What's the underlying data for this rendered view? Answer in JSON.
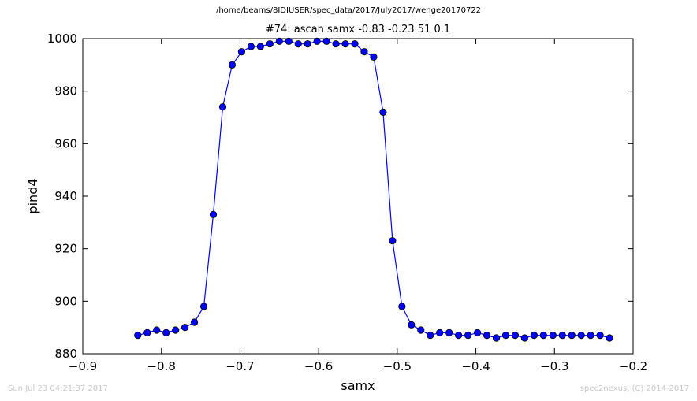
{
  "header": {
    "file_path": "/home/beams/8IDIUSER/spec_data/2017/July2017/wenge20170722",
    "title": "#74: ascan  samx -0.83 -0.23  51 0.1"
  },
  "footer": {
    "timestamp": "Sun Jul 23 04:21:37 2017",
    "credit": "spec2nexus, (C) 2014-2017"
  },
  "colors": {
    "series": "#0000ff",
    "marker_fill": "#0000ff",
    "footer_text": "#c8c8c8"
  },
  "chart_data": {
    "type": "line",
    "xlabel": "samx",
    "ylabel": "pind4",
    "xlim": [
      -0.9,
      -0.2
    ],
    "ylim": [
      880,
      1000
    ],
    "xticks": [
      -0.9,
      -0.8,
      -0.7,
      -0.6,
      -0.5,
      -0.4,
      -0.3,
      -0.2
    ],
    "yticks": [
      880,
      900,
      920,
      940,
      960,
      980,
      1000
    ],
    "xtick_labels": [
      "−0.9",
      "−0.8",
      "−0.7",
      "−0.6",
      "−0.5",
      "−0.4",
      "−0.3",
      "−0.2"
    ],
    "ytick_labels": [
      "880",
      "900",
      "920",
      "940",
      "960",
      "980",
      "1000"
    ],
    "grid": false,
    "series": [
      {
        "x": [
          -0.83,
          -0.818,
          -0.806,
          -0.794,
          -0.782,
          -0.77,
          -0.758,
          -0.746,
          -0.734,
          -0.722,
          -0.71,
          -0.698,
          -0.686,
          -0.674,
          -0.662,
          -0.65,
          -0.638,
          -0.626,
          -0.614,
          -0.602,
          -0.59,
          -0.578,
          -0.566,
          -0.554,
          -0.542,
          -0.53,
          -0.518,
          -0.506,
          -0.494,
          -0.482,
          -0.47,
          -0.458,
          -0.446,
          -0.434,
          -0.422,
          -0.41,
          -0.398,
          -0.386,
          -0.374,
          -0.362,
          -0.35,
          -0.338,
          -0.326,
          -0.314,
          -0.302,
          -0.29,
          -0.278,
          -0.266,
          -0.254,
          -0.242,
          -0.23
        ],
        "y": [
          887,
          888,
          889,
          888,
          889,
          890,
          892,
          898,
          933,
          974,
          990,
          995,
          997,
          997,
          998,
          999,
          999,
          998,
          998,
          999,
          999,
          998,
          998,
          998,
          995,
          993,
          972,
          923,
          898,
          891,
          889,
          887,
          888,
          888,
          887,
          887,
          888,
          887,
          886,
          887,
          887,
          886,
          887,
          887,
          887,
          887,
          887,
          887,
          887,
          887,
          886
        ]
      }
    ]
  }
}
